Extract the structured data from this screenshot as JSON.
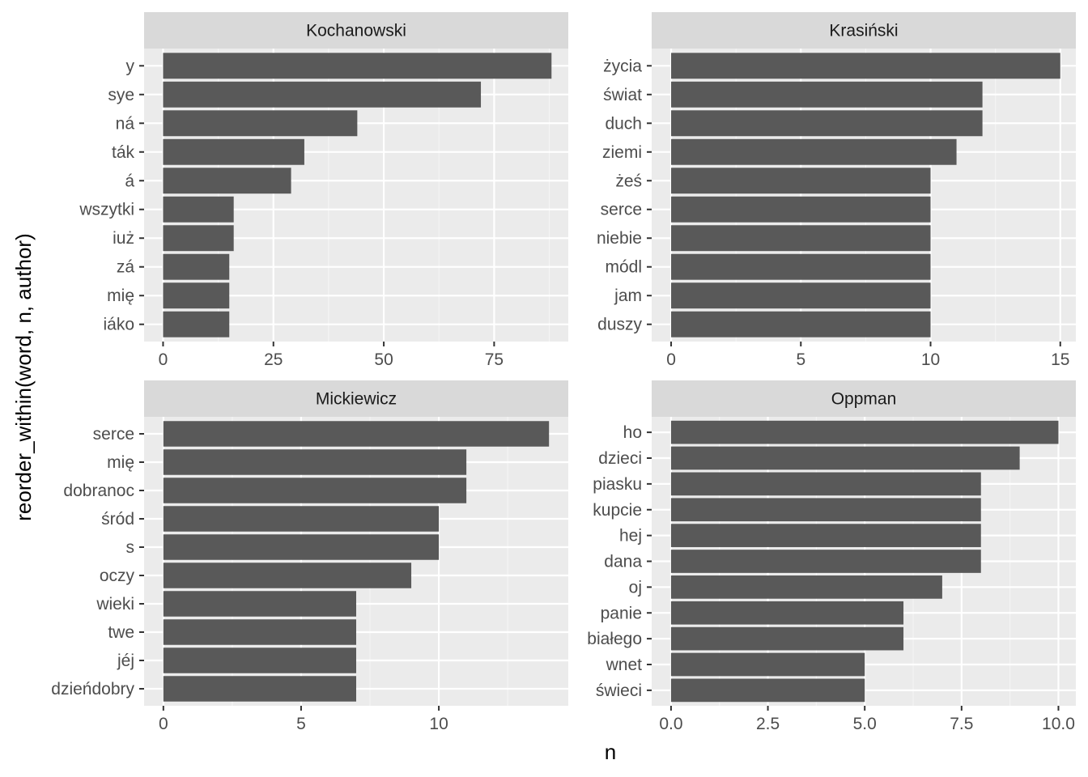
{
  "chart_data": {
    "type": "bar",
    "orientation": "horizontal",
    "xlabel": "n",
    "ylabel": "reorder_within(word, n, author)",
    "grid": true,
    "legend": "none",
    "colors": {
      "bar": "#595959",
      "panel_background": "#ebebeb",
      "strip_background": "#d9d9d9",
      "grid_major": "#ffffff",
      "grid_minor": "#f5f5f5",
      "tick_text": "#4d4d4d"
    },
    "panels": [
      {
        "title": "Kochanowski",
        "categories": [
          "y",
          "sye",
          "ná",
          "ták",
          "á",
          "wszytki",
          "iuż",
          "zá",
          "mię",
          "iáko"
        ],
        "values": [
          88,
          72,
          44,
          32,
          29,
          16,
          16,
          15,
          15,
          15
        ],
        "xlim": [
          -4.3,
          91.8
        ],
        "xticks": [
          0,
          25,
          50,
          75
        ],
        "xtick_labels": [
          "0",
          "25",
          "50",
          "75"
        ],
        "minor_ticks": [
          12.5,
          37.5,
          62.5,
          87.5
        ]
      },
      {
        "title": "Krasiński",
        "categories": [
          "życia",
          "świat",
          "duch",
          "ziemi",
          "żeś",
          "serce",
          "niebie",
          "módl",
          "jam",
          "duszy"
        ],
        "values": [
          15,
          12,
          12,
          11,
          10,
          10,
          10,
          10,
          10,
          10
        ],
        "xlim": [
          -0.75,
          15.6
        ],
        "xticks": [
          0,
          5,
          10,
          15
        ],
        "xtick_labels": [
          "0",
          "5",
          "10",
          "15"
        ],
        "minor_ticks": [
          2.5,
          7.5,
          12.5
        ]
      },
      {
        "title": "Mickiewicz",
        "categories": [
          "serce",
          "mię",
          "dobranoc",
          "śród",
          "s",
          "oczy",
          "wieki",
          "twe",
          "jéj",
          "dzieńdobry"
        ],
        "values": [
          14,
          11,
          11,
          10,
          10,
          9,
          7,
          7,
          7,
          7
        ],
        "xlim": [
          -0.7,
          14.7
        ],
        "xticks": [
          0,
          5,
          10
        ],
        "xtick_labels": [
          "0",
          "5",
          "10"
        ],
        "minor_ticks": [
          2.5,
          7.5,
          12.5
        ]
      },
      {
        "title": "Oppman",
        "categories": [
          "ho",
          "dzieci",
          "piasku",
          "kupcie",
          "hej",
          "dana",
          "oj",
          "panie",
          "białego",
          "wnet",
          "świeci"
        ],
        "values": [
          10,
          9,
          8,
          8,
          8,
          8,
          7,
          6,
          6,
          5,
          5
        ],
        "xlim": [
          -0.5,
          10.45
        ],
        "xticks": [
          0,
          2.5,
          5,
          7.5,
          10
        ],
        "xtick_labels": [
          "0.0",
          "2.5",
          "5.0",
          "7.5",
          "10.0"
        ],
        "minor_ticks": [
          1.25,
          3.75,
          6.25,
          8.75
        ]
      }
    ]
  }
}
